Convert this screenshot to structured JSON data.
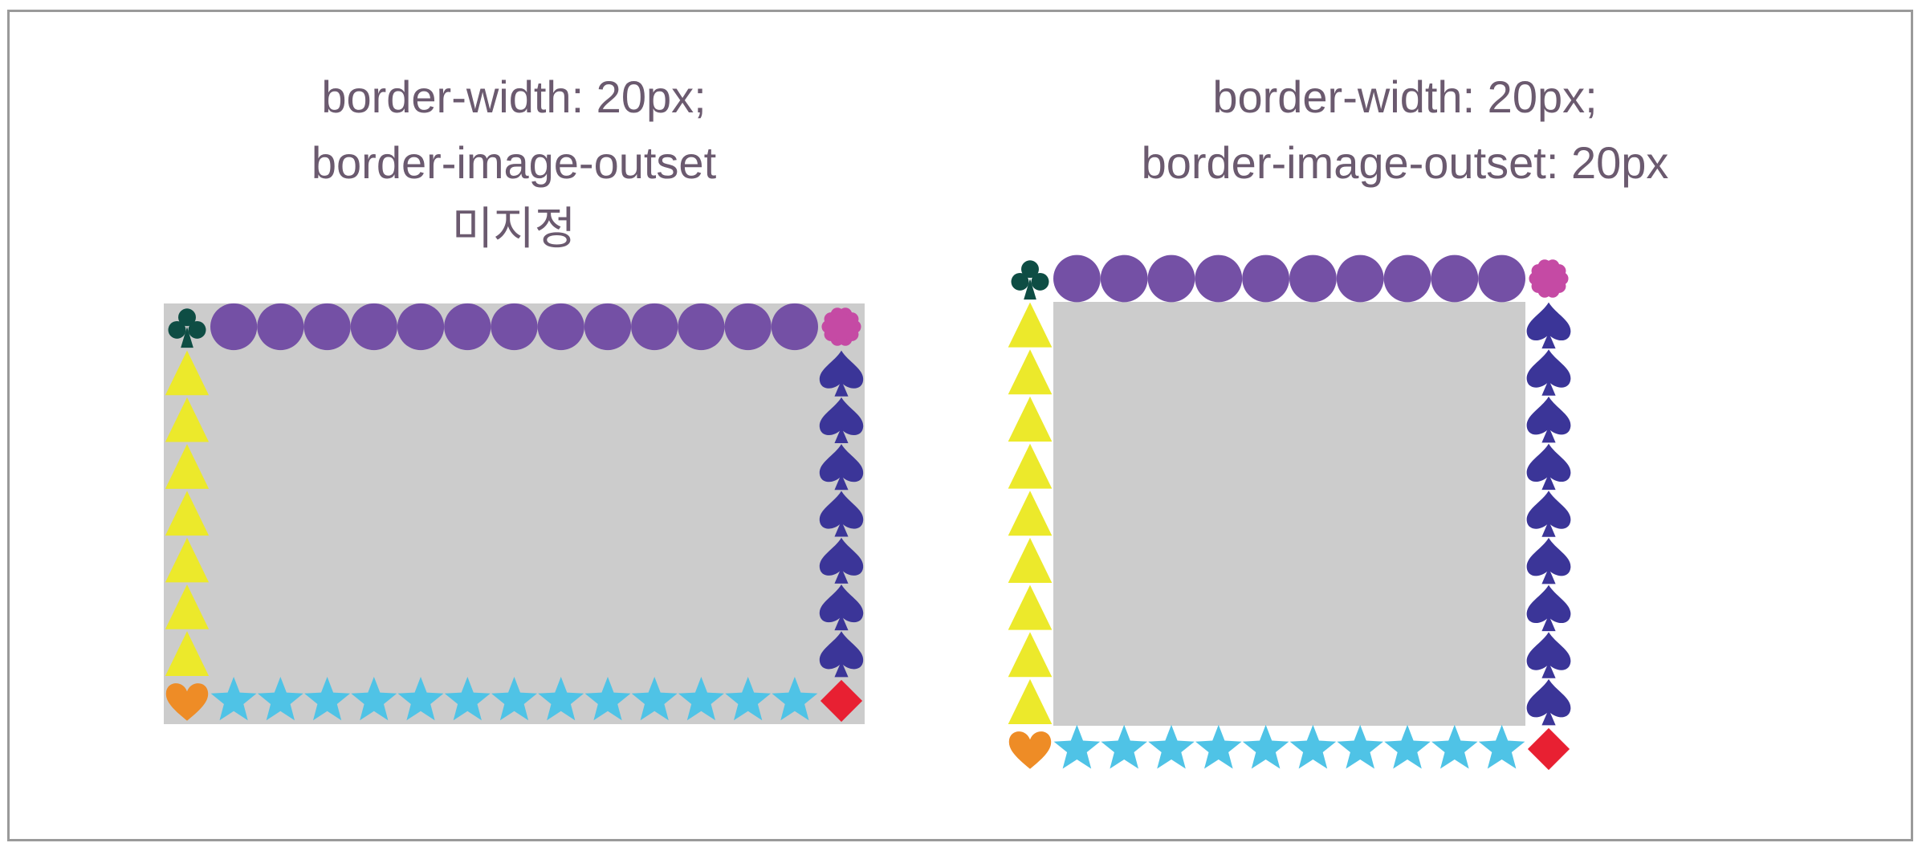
{
  "left_example": {
    "line1": "border-width: 20px;",
    "line2": "border-image-outset",
    "line3": "미지정"
  },
  "right_example": {
    "line1": "border-width: 20px;",
    "line2": "border-image-outset: 20px"
  },
  "border_image": {
    "corners": {
      "top_left": "club-icon",
      "top_right": "flower-icon",
      "bottom_left": "heart-icon",
      "bottom_right": "diamond-icon"
    },
    "edges": {
      "top": "circle-icon",
      "right": "spade-icon",
      "bottom": "star-icon",
      "left": "triangle-icon"
    }
  },
  "colors": {
    "frame_border": "#9a9a9a",
    "caption_text": "#6b5a6f",
    "box_background": "#cccccc",
    "club": "#0e4d44",
    "flower": "#c54aa4",
    "heart": "#ee8c26",
    "diamond": "#e82032",
    "circle": "#7450a5",
    "spade": "#3b3598",
    "star": "#4fc3e6",
    "triangle": "#ece92b"
  }
}
